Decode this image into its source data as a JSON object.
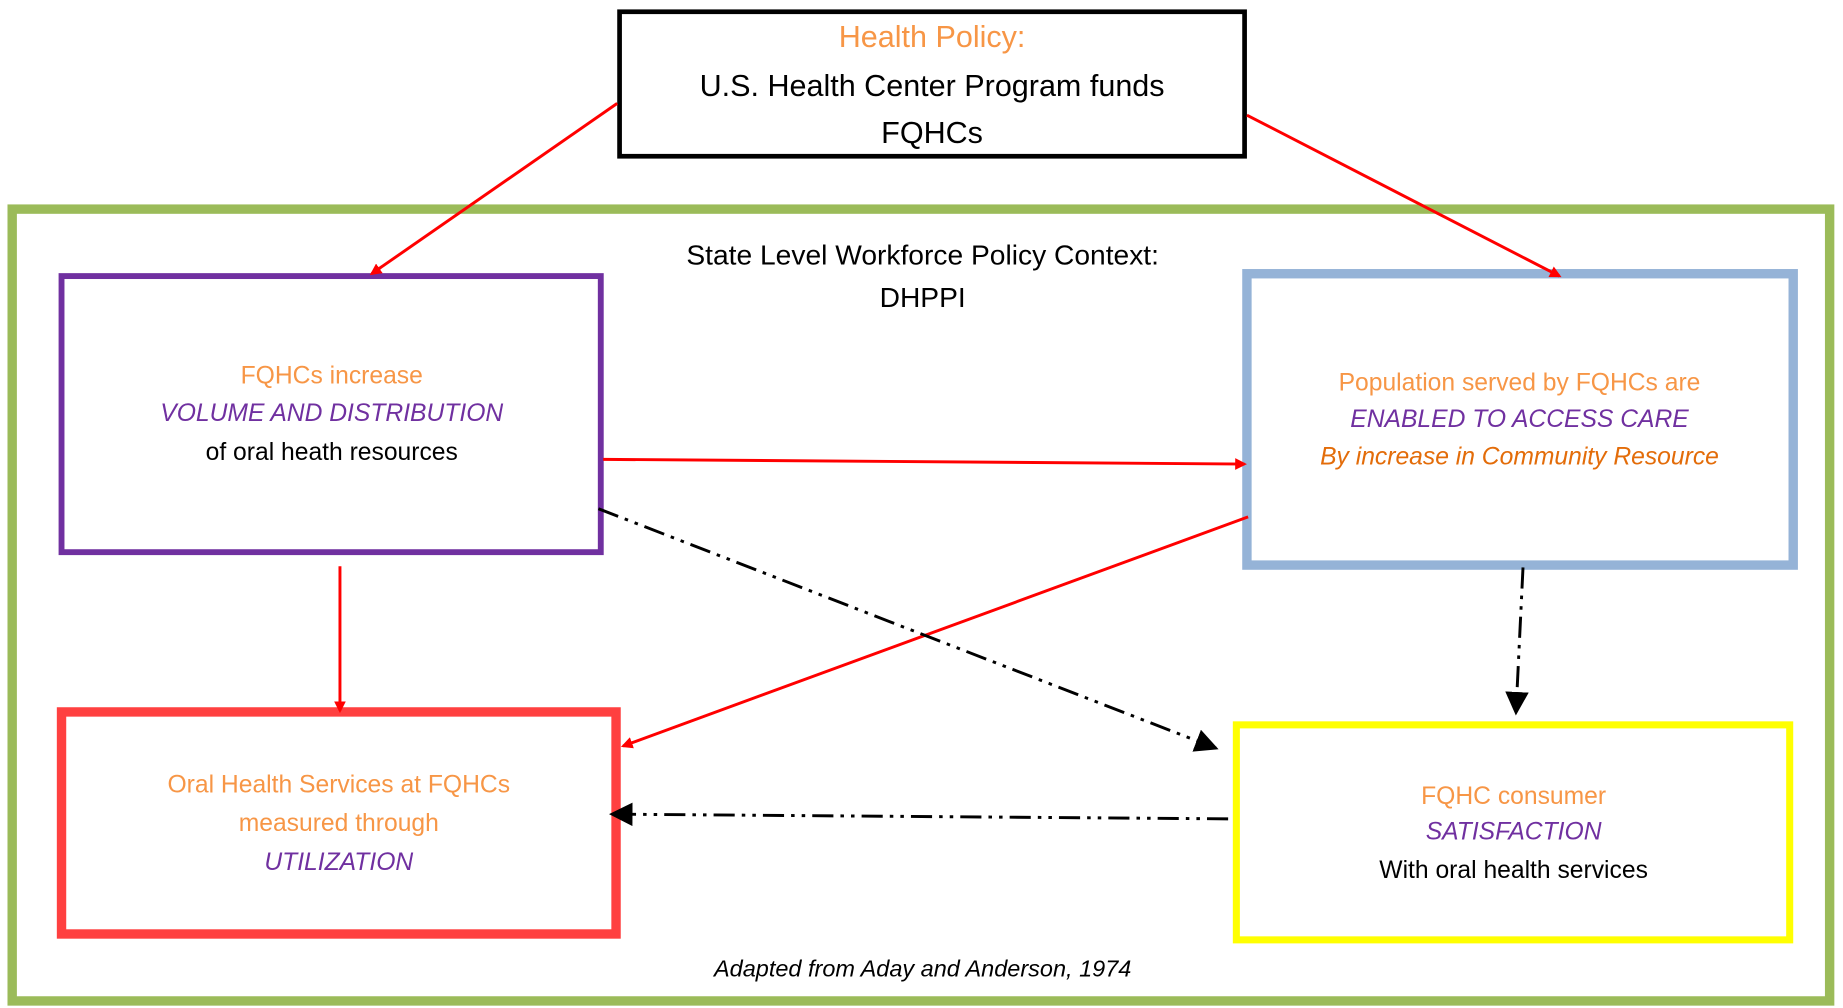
{
  "header": {
    "title": "Health Policy:",
    "lines": [
      "U.S. Health Center Program funds",
      "FQHCs"
    ]
  },
  "context": {
    "lines": [
      "State Level Workforce Policy Context:",
      "DHPPI"
    ]
  },
  "nodes": [
    {
      "lines": [
        "FQHCs increase",
        "VOLUME AND DISTRIBUTION",
        "of oral heath resources"
      ]
    },
    {
      "lines": [
        "Population served by FQHCs are",
        "ENABLED TO ACCESS CARE",
        "By increase in Community Resource"
      ]
    },
    {
      "lines": [
        "Oral Health Services at FQHCs",
        "measured through",
        "UTILIZATION"
      ]
    },
    {
      "lines": [
        "FQHC consumer",
        "SATISFACTION",
        "With oral health services"
      ]
    }
  ],
  "footer": "Adapted from Aday and Anderson, 1974"
}
